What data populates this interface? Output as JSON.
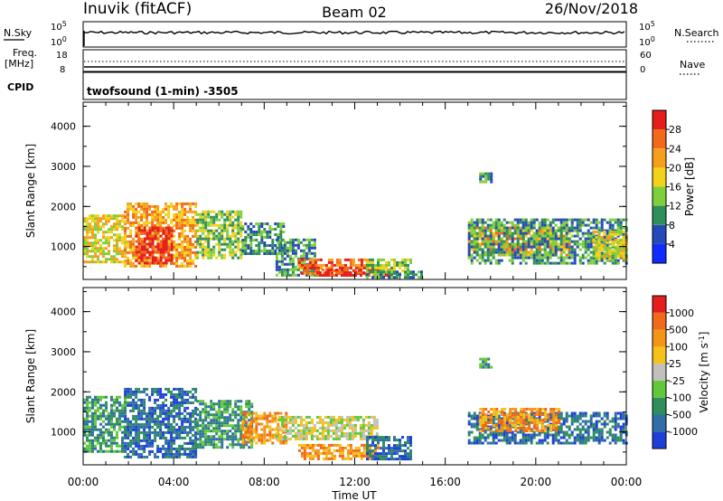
{
  "header": {
    "station": "Inuvik (fitACF)",
    "beam": "Beam 02",
    "date": "26/Nov/2018"
  },
  "labels": {
    "nsky": "N.Sky",
    "nsearch": "N.Search",
    "freq_top": "Freq.",
    "freq_unit": "[MHz]",
    "nave": "Nave",
    "cpid": "CPID",
    "program": "twofsound (1-min) -3505",
    "noise_tick_hi": "10^5",
    "noise_tick_lo": "10^0",
    "freq_tick_hi": "18",
    "freq_tick_lo": "8",
    "nave_tick_hi": "60",
    "nave_tick_lo": "0"
  },
  "chart_data": [
    {
      "type": "heatmap",
      "name": "power",
      "xlabel": "Time UT",
      "ylabel": "Slant Range [km]",
      "x_ticks": [
        "00:00",
        "04:00",
        "08:00",
        "12:00",
        "16:00",
        "20:00",
        "00:00"
      ],
      "y_ticks": [
        "1000",
        "2000",
        "3000",
        "4000"
      ],
      "ylim": [
        180,
        4600
      ],
      "colorbar": {
        "label": "Power [dB]",
        "ticks": [
          "4",
          "8",
          "12",
          "16",
          "20",
          "24",
          "28"
        ],
        "colors": [
          "#0f2bff",
          "#2549b8",
          "#2f8f5a",
          "#7fcf3a",
          "#f3d21a",
          "#f59f1c",
          "#f06a1a",
          "#e51d1d"
        ]
      },
      "regions": [
        {
          "t0": 0.0,
          "t1": 1.8,
          "r0": 600,
          "r1": 1800,
          "v": 16
        },
        {
          "t0": 1.8,
          "t1": 5.0,
          "r0": 500,
          "r1": 2100,
          "v": 20
        },
        {
          "t0": 2.3,
          "t1": 3.9,
          "r0": 600,
          "r1": 1500,
          "v": 28
        },
        {
          "t0": 5.0,
          "t1": 7.0,
          "r0": 700,
          "r1": 1900,
          "v": 12
        },
        {
          "t0": 7.0,
          "t1": 8.8,
          "r0": 800,
          "r1": 1600,
          "v": 8
        },
        {
          "t0": 8.5,
          "t1": 10.2,
          "r0": 300,
          "r1": 1200,
          "v": 8
        },
        {
          "t0": 9.5,
          "t1": 12.5,
          "r0": 300,
          "r1": 700,
          "v": 24
        },
        {
          "t0": 10.3,
          "t1": 13.7,
          "r0": 250,
          "r1": 450,
          "v": 28
        },
        {
          "t0": 12.5,
          "t1": 14.5,
          "r0": 350,
          "r1": 700,
          "v": 12
        },
        {
          "t0": 12.5,
          "t1": 15.0,
          "r0": 200,
          "r1": 400,
          "v": 8
        },
        {
          "t0": 17.0,
          "t1": 21.5,
          "r0": 800,
          "r1": 1500,
          "v": 20
        },
        {
          "t0": 17.0,
          "t1": 24.0,
          "r0": 600,
          "r1": 1700,
          "v": 8
        },
        {
          "t0": 22.5,
          "t1": 24.0,
          "r0": 700,
          "r1": 1400,
          "v": 16
        },
        {
          "t0": 17.5,
          "t1": 18.0,
          "r0": 2600,
          "r1": 2850,
          "v": 8
        }
      ]
    },
    {
      "type": "heatmap",
      "name": "velocity",
      "xlabel": "Time UT",
      "ylabel": "Slant Range [km]",
      "x_ticks": [
        "00:00",
        "04:00",
        "08:00",
        "12:00",
        "16:00",
        "20:00",
        "00:00"
      ],
      "y_ticks": [
        "1000",
        "2000",
        "3000",
        "4000"
      ],
      "ylim": [
        180,
        4600
      ],
      "colorbar": {
        "label": "Velocity [m s^-1]",
        "ticks": [
          "1000",
          "500",
          "100",
          "25",
          "-25",
          "-100",
          "-500",
          "-1000"
        ],
        "colors": [
          "#1f40d8",
          "#2f6fa6",
          "#2e8f5a",
          "#62c83a",
          "#c0c0bc",
          "#f4c21a",
          "#f59518",
          "#f06a1a",
          "#e51d1d"
        ]
      },
      "regions": [
        {
          "t0": 0.0,
          "t1": 1.8,
          "r0": 500,
          "r1": 1900,
          "v": -100
        },
        {
          "t0": 1.8,
          "t1": 5.0,
          "r0": 400,
          "r1": 2100,
          "v": -500
        },
        {
          "t0": 5.0,
          "t1": 7.5,
          "r0": 600,
          "r1": 1800,
          "v": -100
        },
        {
          "t0": 7.0,
          "t1": 9.0,
          "r0": 700,
          "r1": 1500,
          "v": 100
        },
        {
          "t0": 8.5,
          "t1": 13.0,
          "r0": 800,
          "r1": 1400,
          "v": 0
        },
        {
          "t0": 9.5,
          "t1": 13.0,
          "r0": 300,
          "r1": 700,
          "v": 100
        },
        {
          "t0": 12.5,
          "t1": 14.5,
          "r0": 300,
          "r1": 900,
          "v": -500
        },
        {
          "t0": 17.0,
          "t1": 24.0,
          "r0": 700,
          "r1": 1500,
          "v": -500
        },
        {
          "t0": 17.5,
          "t1": 21.0,
          "r0": 1000,
          "r1": 1600,
          "v": 100
        },
        {
          "t0": 17.5,
          "t1": 18.0,
          "r0": 2600,
          "r1": 2850,
          "v": -100
        }
      ]
    }
  ]
}
